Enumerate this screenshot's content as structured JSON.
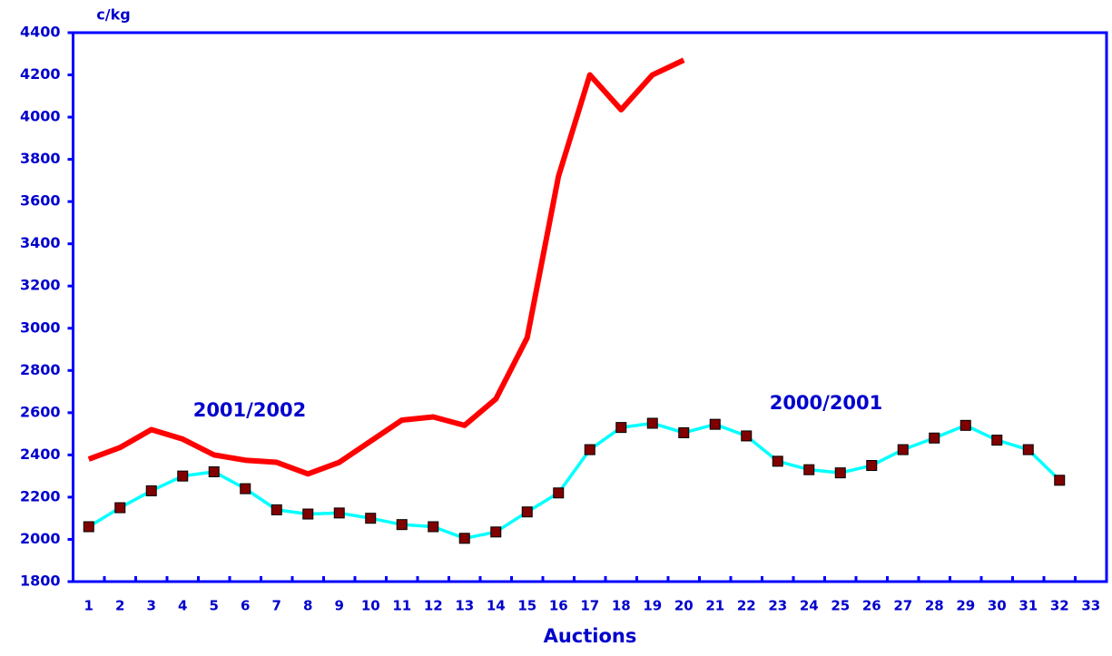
{
  "chart_data": {
    "type": "line",
    "y_axis_label": "c/kg",
    "x_axis_label": "Auctions",
    "categories": [
      "1",
      "2",
      "3",
      "4",
      "5",
      "6",
      "7",
      "8",
      "9",
      "10",
      "11",
      "12",
      "13",
      "14",
      "15",
      "16",
      "17",
      "18",
      "19",
      "20",
      "21",
      "22",
      "23",
      "24",
      "25",
      "26",
      "27",
      "28",
      "29",
      "30",
      "31",
      "32",
      "33"
    ],
    "series": [
      {
        "name": "2001/2002",
        "color": "#ff0000",
        "marker": false,
        "values": [
          2380,
          2435,
          2520,
          2475,
          2400,
          2375,
          2365,
          2310,
          2365,
          2465,
          2565,
          2580,
          2540,
          2665,
          2955,
          3720,
          4200,
          4035,
          4200,
          4270,
          null,
          null,
          null,
          null,
          null,
          null,
          null,
          null,
          null,
          null,
          null,
          null,
          null
        ]
      },
      {
        "name": "2000/2001",
        "color": "#00ffff",
        "marker": true,
        "marker_color": "#800000",
        "values": [
          2060,
          2150,
          2230,
          2300,
          2320,
          2240,
          2140,
          2120,
          2125,
          2100,
          2070,
          2060,
          2005,
          2035,
          2130,
          2220,
          2425,
          2530,
          2550,
          2505,
          2545,
          2490,
          2370,
          2330,
          2315,
          2350,
          2425,
          2480,
          2540,
          2470,
          2425,
          2280,
          null
        ]
      }
    ],
    "ylim": [
      1800,
      4400
    ],
    "yticks": [
      1800,
      2000,
      2200,
      2400,
      2600,
      2800,
      3000,
      3200,
      3400,
      3600,
      3800,
      4000,
      4200,
      4400
    ]
  }
}
